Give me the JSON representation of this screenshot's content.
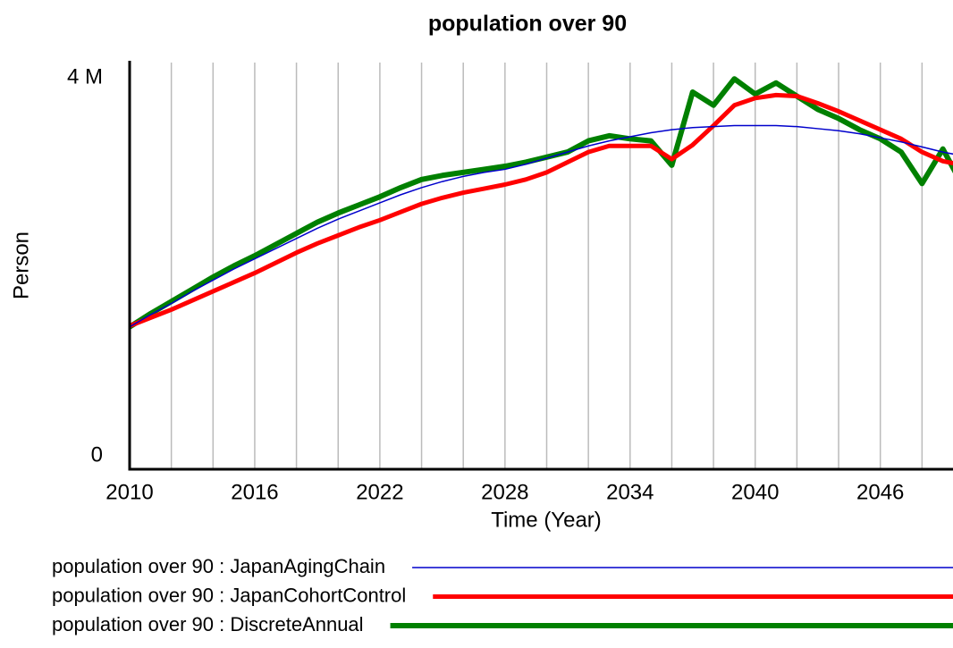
{
  "chart_data": {
    "type": "line",
    "title": "population over 90",
    "xlabel": "Time (Year)",
    "ylabel": "Person",
    "x": [
      2010,
      2011,
      2012,
      2013,
      2014,
      2015,
      2016,
      2017,
      2018,
      2019,
      2020,
      2021,
      2022,
      2023,
      2024,
      2025,
      2026,
      2027,
      2028,
      2029,
      2030,
      2031,
      2032,
      2033,
      2034,
      2035,
      2036,
      2037,
      2038,
      2039,
      2040,
      2041,
      2042,
      2043,
      2044,
      2045,
      2046,
      2047,
      2048,
      2049,
      2050
    ],
    "series": [
      {
        "name": "population over 90 : JapanAgingChain",
        "color": "#0000cc",
        "width": 1.5,
        "values": [
          1400000,
          1520000,
          1630000,
          1750000,
          1860000,
          1970000,
          2070000,
          2170000,
          2270000,
          2370000,
          2460000,
          2540000,
          2620000,
          2700000,
          2770000,
          2830000,
          2880000,
          2920000,
          2950000,
          3000000,
          3060000,
          3120000,
          3180000,
          3230000,
          3270000,
          3310000,
          3340000,
          3360000,
          3370000,
          3380000,
          3380000,
          3380000,
          3370000,
          3350000,
          3330000,
          3300000,
          3260000,
          3220000,
          3170000,
          3120000,
          3080000
        ]
      },
      {
        "name": "population over 90 : JapanCohortControl",
        "color": "#ff0000",
        "width": 5,
        "values": [
          1410000,
          1490000,
          1570000,
          1660000,
          1750000,
          1840000,
          1930000,
          2030000,
          2130000,
          2220000,
          2300000,
          2380000,
          2450000,
          2530000,
          2610000,
          2670000,
          2720000,
          2760000,
          2800000,
          2850000,
          2920000,
          3020000,
          3120000,
          3180000,
          3180000,
          3180000,
          3050000,
          3190000,
          3380000,
          3580000,
          3650000,
          3680000,
          3670000,
          3600000,
          3520000,
          3430000,
          3340000,
          3250000,
          3120000,
          3030000,
          2990000
        ]
      },
      {
        "name": "population over 90 : DiscreteAnnual",
        "color": "#008000",
        "width": 6,
        "values": [
          1400000,
          1530000,
          1650000,
          1770000,
          1890000,
          2000000,
          2100000,
          2210000,
          2320000,
          2430000,
          2520000,
          2600000,
          2680000,
          2770000,
          2850000,
          2890000,
          2920000,
          2950000,
          2980000,
          3020000,
          3070000,
          3120000,
          3230000,
          3280000,
          3250000,
          3230000,
          2990000,
          3710000,
          3580000,
          3840000,
          3690000,
          3800000,
          3670000,
          3540000,
          3450000,
          3340000,
          3250000,
          3120000,
          2810000,
          3150000,
          2770000
        ]
      }
    ],
    "xlim": [
      2010,
      2050
    ],
    "xticks": [
      2010,
      2016,
      2022,
      2028,
      2034,
      2040,
      2046
    ],
    "xgrid": [
      2012,
      2014,
      2016,
      2018,
      2020,
      2022,
      2024,
      2026,
      2028,
      2030,
      2032,
      2034,
      2036,
      2038,
      2040,
      2042,
      2044,
      2046,
      2048
    ],
    "ylim": [
      0,
      4000000
    ],
    "yticks": [
      0,
      {
        "value": 4000000,
        "label": "4 M"
      }
    ],
    "grid": true
  }
}
